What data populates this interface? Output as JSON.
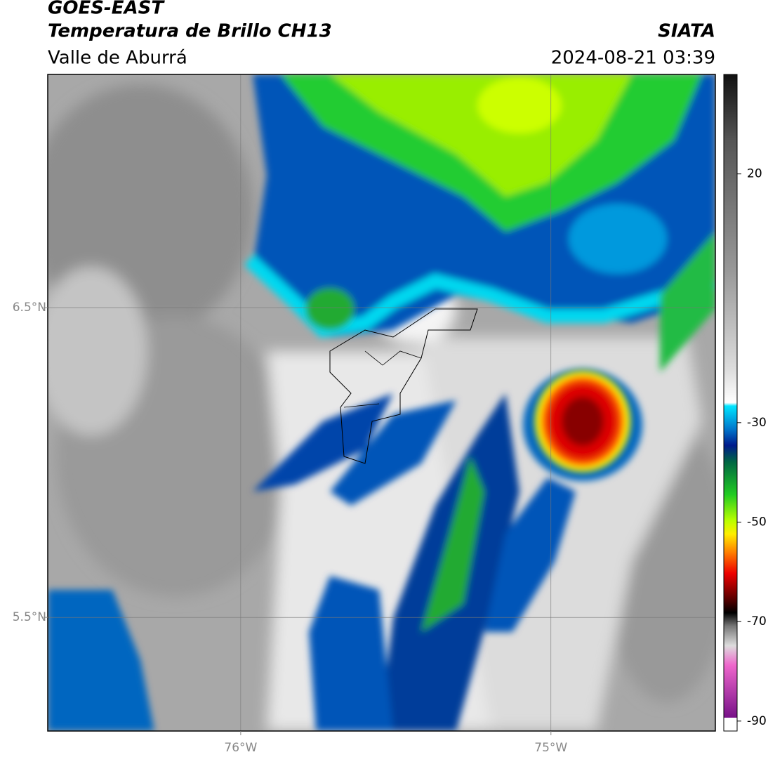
{
  "header": {
    "title": "GOES-EAST",
    "subtitle": "Temperatura de Brillo CH13",
    "region": "Valle de Aburrá",
    "source": "SIATA",
    "datetime": "2024-08-21 03:39"
  },
  "map": {
    "xlim": [
      -76.622,
      -74.47
    ],
    "ylim": [
      5.133,
      7.253
    ],
    "lon_ticks": [
      {
        "value": -76,
        "label": "76°W"
      },
      {
        "value": -75,
        "label": "75°W"
      }
    ],
    "lat_ticks": [
      {
        "value": 6.5,
        "label": "6.5°N"
      },
      {
        "value": 5.5,
        "label": "5.5°N"
      }
    ]
  },
  "colorbar": {
    "clim": [
      40,
      -92
    ],
    "ticks": [
      20,
      -30,
      -50,
      -70,
      -90
    ]
  }
}
